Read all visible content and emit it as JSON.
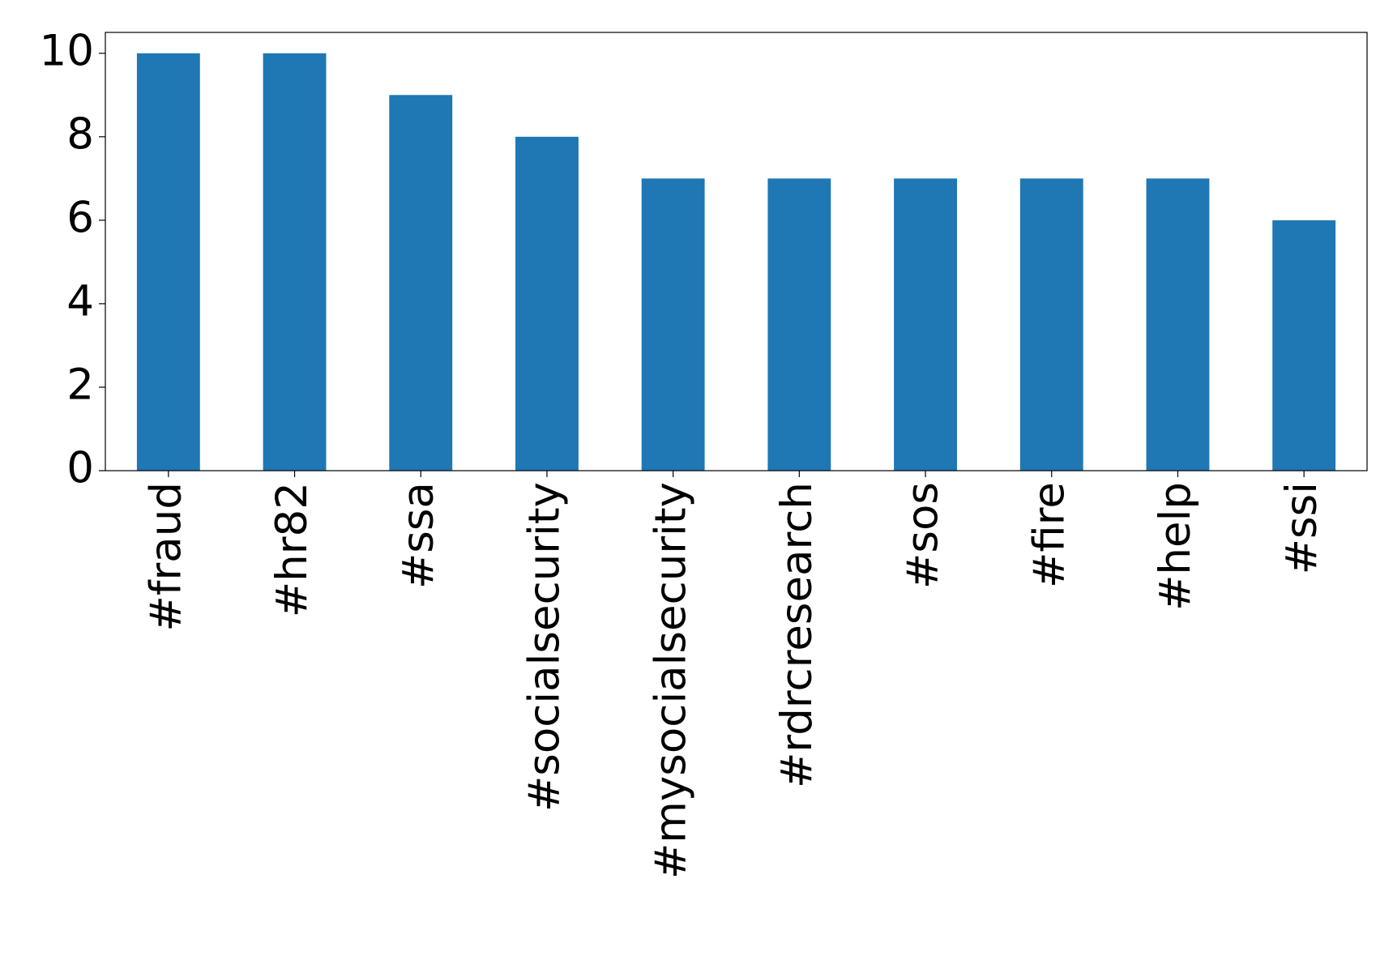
{
  "chart_data": {
    "type": "bar",
    "categories": [
      "#fraud",
      "#hr82",
      "#ssa",
      "#socialsecurity",
      "#mysocialsecurity",
      "#rdrcresearch",
      "#sos",
      "#fire",
      "#help",
      "#ssi"
    ],
    "values": [
      10,
      10,
      9,
      8,
      7,
      7,
      7,
      7,
      7,
      6
    ],
    "color": "#1f77b4",
    "ylim": [
      0,
      10.5
    ],
    "yticks": [
      0,
      2,
      4,
      6,
      8,
      10
    ]
  }
}
